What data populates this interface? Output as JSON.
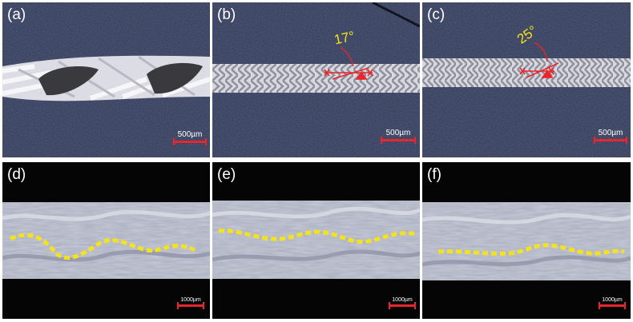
{
  "panels": [
    {
      "label": "(a)",
      "scale_bar": "500µm"
    },
    {
      "label": "(b)",
      "scale_bar": "500µm",
      "angle": "17°"
    },
    {
      "label": "(c)",
      "scale_bar": "500µm",
      "angle": "25°"
    },
    {
      "label": "(d)",
      "scale_bar": "1000µm"
    },
    {
      "label": "(e)",
      "scale_bar": "1000µm"
    },
    {
      "label": "(f)",
      "scale_bar": "1000µm"
    }
  ],
  "colors": {
    "background_top": "#2b3350",
    "background_bottom": "#0a0a0a",
    "fiber": "#e6e6ea",
    "annotation_red": "#e8262b",
    "annotation_yellow": "#f4e21c"
  }
}
